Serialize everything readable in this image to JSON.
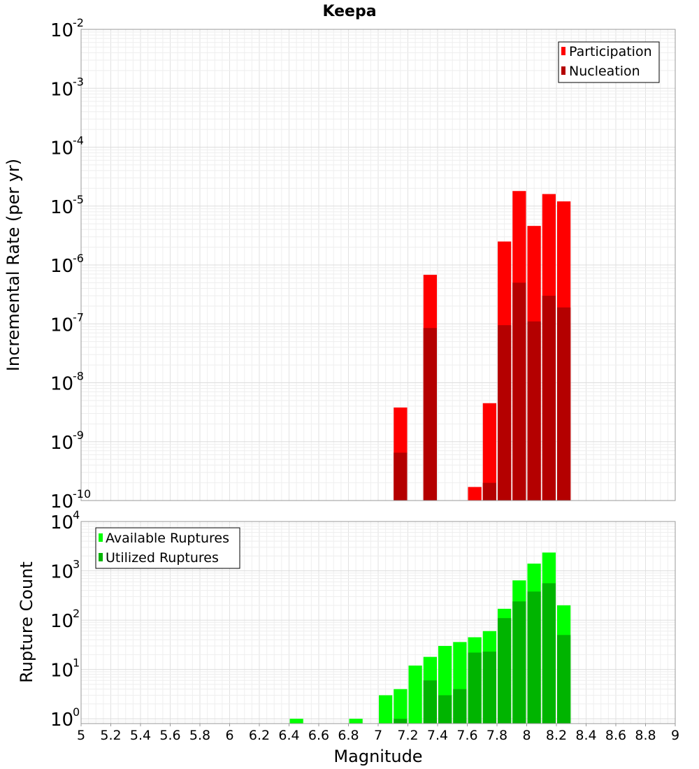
{
  "chart_data": [
    {
      "type": "bar",
      "title": "Keepa",
      "ylabel": "Incremental Rate (per yr)",
      "yscale": "log",
      "ylim": [
        1e-10,
        0.01
      ],
      "ytick_exponents": [
        -2,
        -3,
        -4,
        -5,
        -6,
        -7,
        -8,
        -9,
        -10
      ],
      "bin_width": 0.1,
      "legend_position": "top-right",
      "series": [
        {
          "name": "Participation",
          "color": "#ff0000",
          "x": [
            7.15,
            7.35,
            7.65,
            7.75,
            7.85,
            7.95,
            8.05,
            8.15,
            8.25
          ],
          "values": [
            3.8e-09,
            6.8e-07,
            1.7e-10,
            4.5e-09,
            2.5e-06,
            1.8e-05,
            4.6e-06,
            1.6e-05,
            1.2e-05
          ]
        },
        {
          "name": "Nucleation",
          "color": "#b40000",
          "x": [
            7.15,
            7.35,
            7.75,
            7.85,
            7.95,
            8.05,
            8.15,
            8.25
          ],
          "values": [
            6.5e-10,
            8.5e-08,
            2e-10,
            9.5e-08,
            5e-07,
            1.1e-07,
            3e-07,
            1.9e-07
          ]
        }
      ]
    },
    {
      "type": "bar",
      "xlabel": "Magnitude",
      "ylabel": "Rupture Count",
      "yscale": "log",
      "ylim": [
        0.8,
        10000
      ],
      "ytick_exponents": [
        4,
        3,
        2,
        1,
        0
      ],
      "xlim": [
        5,
        9
      ],
      "xticks": [
        "5",
        "5.2",
        "5.4",
        "5.6",
        "5.8",
        "6",
        "6.2",
        "6.4",
        "6.6",
        "6.8",
        "7",
        "7.2",
        "7.4",
        "7.6",
        "7.8",
        "8",
        "8.2",
        "8.4",
        "8.6",
        "8.8",
        "9"
      ],
      "bin_width": 0.1,
      "legend_position": "top-left",
      "series": [
        {
          "name": "Available Ruptures",
          "color": "#00ff00",
          "x": [
            6.45,
            6.85,
            7.05,
            7.15,
            7.25,
            7.35,
            7.45,
            7.55,
            7.65,
            7.75,
            7.85,
            7.95,
            8.05,
            8.15,
            8.25
          ],
          "values": [
            1,
            1,
            3,
            4,
            12,
            18,
            30,
            36,
            45,
            60,
            170,
            640,
            1400,
            2350,
            200
          ]
        },
        {
          "name": "Utilized Ruptures",
          "color": "#00b400",
          "x": [
            7.15,
            7.35,
            7.45,
            7.55,
            7.65,
            7.75,
            7.85,
            7.95,
            8.05,
            8.15,
            8.25
          ],
          "values": [
            1,
            6,
            3,
            4,
            22,
            23,
            110,
            240,
            380,
            560,
            50
          ]
        }
      ]
    }
  ]
}
